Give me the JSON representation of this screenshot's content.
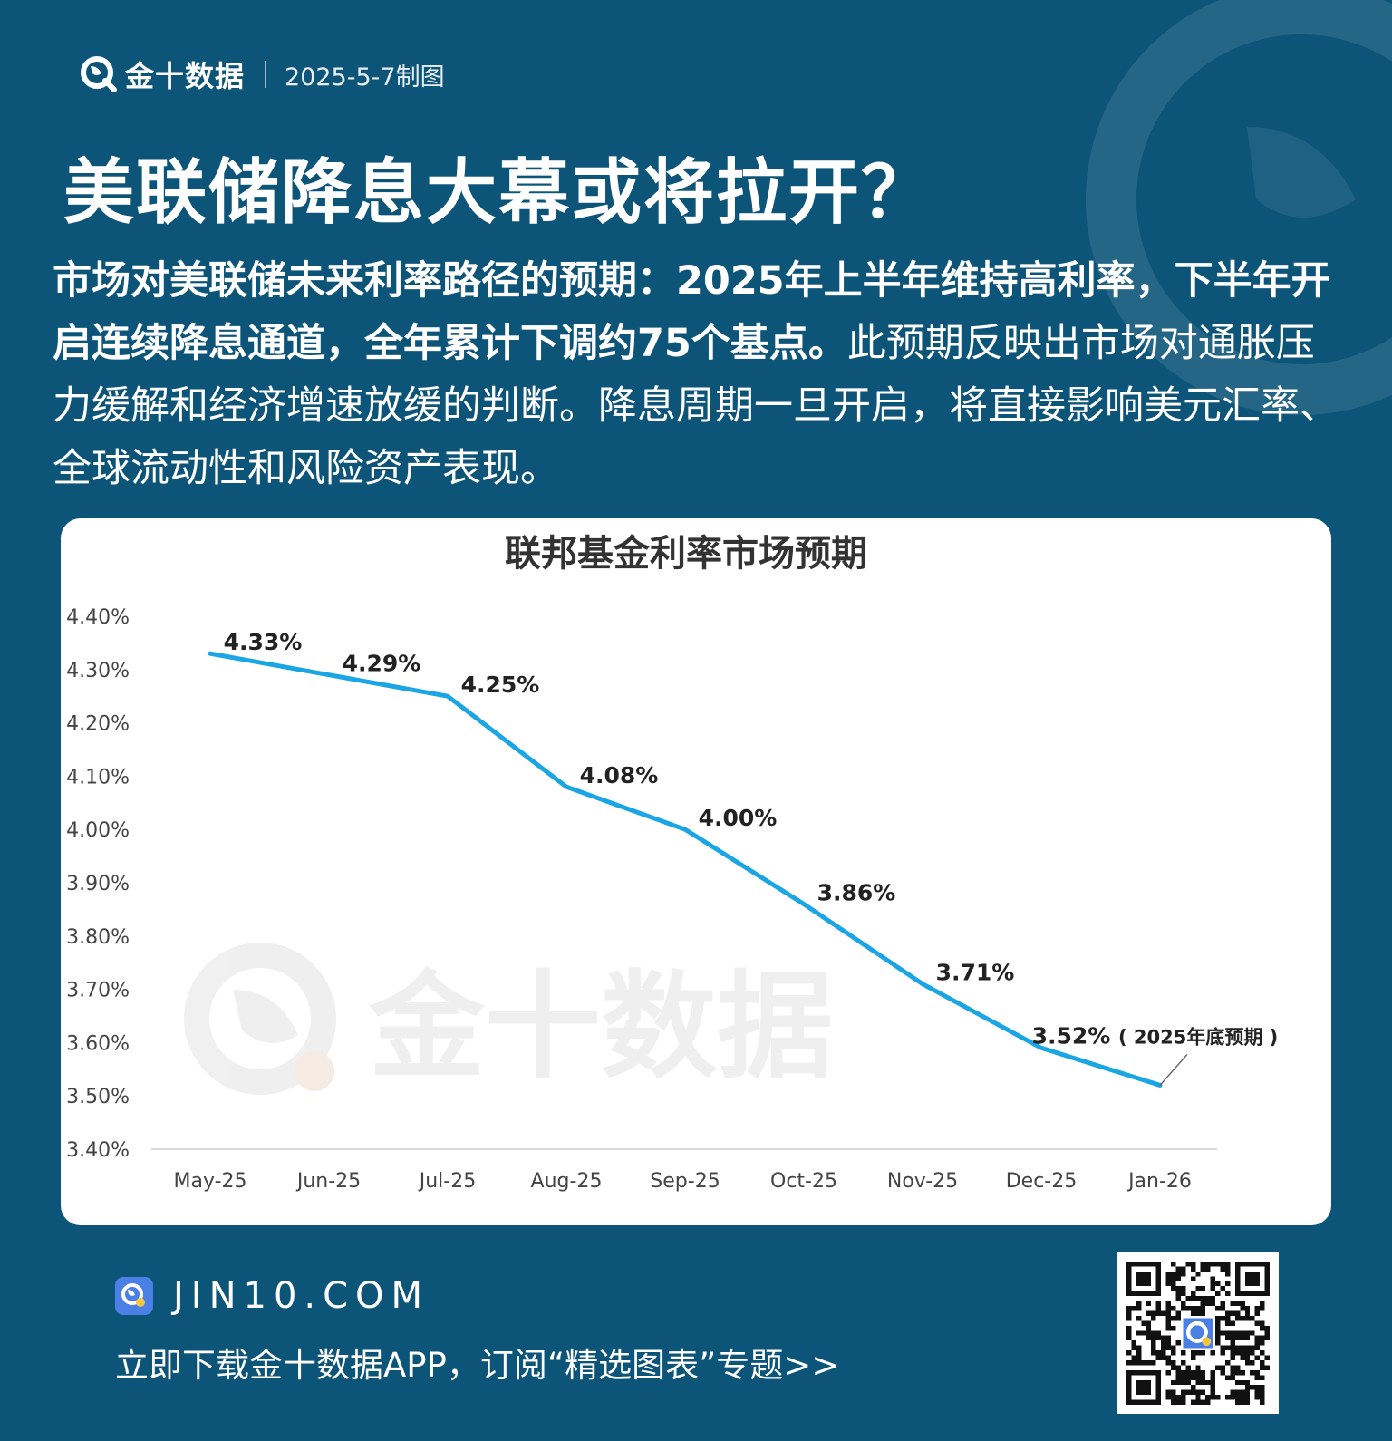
{
  "brand": {
    "name": "金十数据",
    "date": "2025-5-7制图",
    "logo_icon": "jin10-logo-icon"
  },
  "headline": "美联储降息大幕或将拉开？",
  "description": {
    "bold": "市场对美联储未来利率路径的预期：2025年上半年维持高利率，下半年开启连续降息通道，全年累计下调约75个基点。",
    "normal": "此预期反映出市场对通胀压力缓解和经济增速放缓的判断。降息周期一旦开启，将直接影响美元汇率、全球流动性和风险资产表现。"
  },
  "chart_data": {
    "type": "line",
    "title": "联邦基金利率市场预期",
    "categories": [
      "May-25",
      "Jun-25",
      "Jul-25",
      "Aug-25",
      "Sep-25",
      "Oct-25",
      "Nov-25",
      "Dec-25",
      "Jan-26"
    ],
    "values": [
      4.33,
      4.29,
      4.25,
      4.08,
      4.0,
      3.86,
      3.71,
      3.59,
      3.52
    ],
    "data_labels": [
      "4.33%",
      "4.29%",
      "4.25%",
      "4.08%",
      "4.00%",
      "3.86%",
      "3.71%",
      "",
      "3.52%"
    ],
    "ylim": [
      3.4,
      4.4
    ],
    "y_ticks": [
      "4.40%",
      "4.30%",
      "4.20%",
      "4.10%",
      "4.00%",
      "3.90%",
      "3.80%",
      "3.70%",
      "3.60%",
      "3.50%",
      "3.40%"
    ],
    "annotation": "2025年底预期",
    "line_color": "#1aa6e4",
    "watermark": "金十数据",
    "grid": false,
    "legend": "none"
  },
  "footer": {
    "site": "JIN10.COM",
    "cta": "立即下载金十数据APP，订阅“精选图表”专题>>"
  },
  "colors": {
    "background": "#0d5479",
    "card": "#ffffff"
  }
}
